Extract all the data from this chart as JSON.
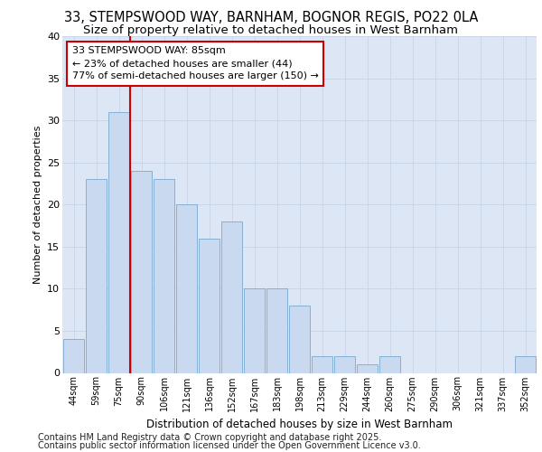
{
  "title_line1": "33, STEMPSWOOD WAY, BARNHAM, BOGNOR REGIS, PO22 0LA",
  "title_line2": "Size of property relative to detached houses in West Barnham",
  "xlabel": "Distribution of detached houses by size in West Barnham",
  "ylabel": "Number of detached properties",
  "categories": [
    "44sqm",
    "59sqm",
    "75sqm",
    "90sqm",
    "106sqm",
    "121sqm",
    "136sqm",
    "152sqm",
    "167sqm",
    "183sqm",
    "198sqm",
    "213sqm",
    "229sqm",
    "244sqm",
    "260sqm",
    "275sqm",
    "290sqm",
    "306sqm",
    "321sqm",
    "337sqm",
    "352sqm"
  ],
  "values": [
    4,
    23,
    31,
    24,
    23,
    20,
    16,
    18,
    10,
    10,
    8,
    2,
    2,
    1,
    2,
    0,
    0,
    0,
    0,
    0,
    2
  ],
  "bar_color": "#c9d9ef",
  "bar_edge_color": "#7aaad0",
  "vline_color": "#cc0000",
  "vline_position": 2.5,
  "annotation_text": "33 STEMPSWOOD WAY: 85sqm\n← 23% of detached houses are smaller (44)\n77% of semi-detached houses are larger (150) →",
  "annotation_box_facecolor": "#ffffff",
  "annotation_box_edgecolor": "#cc0000",
  "ylim": [
    0,
    40
  ],
  "yticks": [
    0,
    5,
    10,
    15,
    20,
    25,
    30,
    35,
    40
  ],
  "grid_color": "#c8d4e8",
  "background_color": "#dce6f5",
  "footer_line1": "Contains HM Land Registry data © Crown copyright and database right 2025.",
  "footer_line2": "Contains public sector information licensed under the Open Government Licence v3.0.",
  "title_fontsize": 10.5,
  "subtitle_fontsize": 9.5,
  "annotation_fontsize": 8,
  "footer_fontsize": 7,
  "ylabel_fontsize": 8,
  "xlabel_fontsize": 8.5,
  "tick_fontsize": 7,
  "ytick_fontsize": 8
}
